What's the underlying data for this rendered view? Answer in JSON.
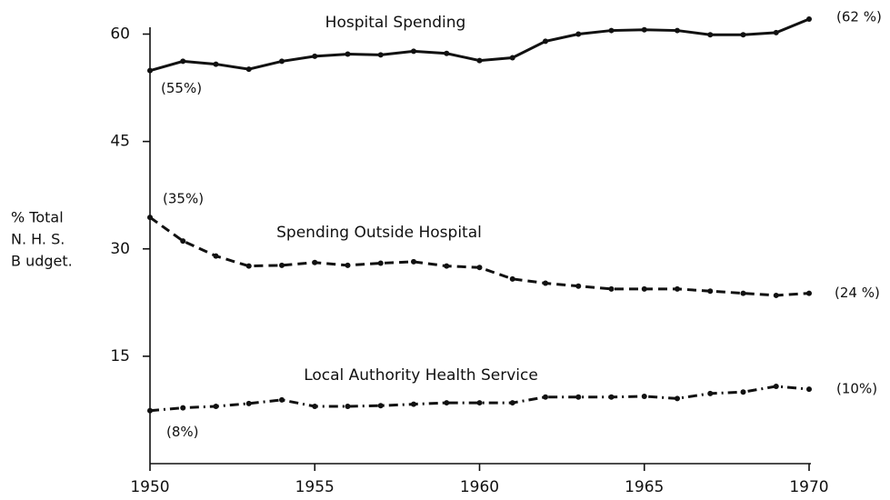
{
  "chart_data": {
    "type": "line",
    "ylabel": [
      "% Total",
      "N. H. S.",
      "B udget."
    ],
    "x": [
      1950,
      1951,
      1952,
      1953,
      1954,
      1955,
      1956,
      1957,
      1958,
      1959,
      1960,
      1961,
      1962,
      1963,
      1964,
      1965,
      1966,
      1967,
      1968,
      1969,
      1970
    ],
    "xlim": [
      1950,
      1970
    ],
    "xticks": [
      1950,
      1955,
      1960,
      1965,
      1970
    ],
    "ylim": [
      0,
      64
    ],
    "yticks": [
      15,
      30,
      45,
      60
    ],
    "series": [
      {
        "name": "Hospital Spending",
        "color": "#111111",
        "dash": "solid",
        "start_label": "(55%)",
        "end_label": "(62 %)",
        "values": [
          54.9,
          56.2,
          55.8,
          55.1,
          56.2,
          56.9,
          57.2,
          57.1,
          57.6,
          57.3,
          56.3,
          56.7,
          59.0,
          60.0,
          60.5,
          60.6,
          60.5,
          59.9,
          59.9,
          60.2,
          62.1
        ]
      },
      {
        "name": "Spending Outside Hospital",
        "color": "#111111",
        "dash": "dashed",
        "start_label": "(35%)",
        "end_label": "(24 %)",
        "values": [
          34.4,
          31.1,
          29.0,
          27.6,
          27.7,
          28.1,
          27.7,
          28.0,
          28.2,
          27.6,
          27.4,
          25.8,
          25.2,
          24.8,
          24.4,
          24.4,
          24.4,
          24.1,
          23.8,
          23.5,
          23.8
        ]
      },
      {
        "name": "Local Authority Health Service",
        "color": "#111111",
        "dash": "dashdot",
        "start_label": "(8%)",
        "end_label": "(10%)",
        "values": [
          7.4,
          7.8,
          8.0,
          8.4,
          8.9,
          8.0,
          8.0,
          8.1,
          8.3,
          8.5,
          8.5,
          8.5,
          9.3,
          9.3,
          9.3,
          9.4,
          9.1,
          9.8,
          10.0,
          10.8,
          10.4
        ]
      }
    ]
  }
}
